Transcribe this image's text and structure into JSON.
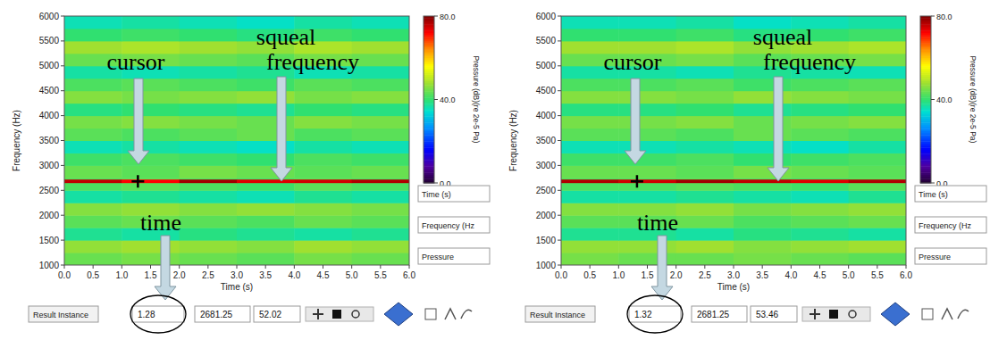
{
  "chart_data": [
    {
      "type": "heatmap",
      "xlabel": "Time (s)",
      "ylabel": "Frequency (Hz)",
      "xlim": [
        0,
        6
      ],
      "ylim": [
        1000,
        6000
      ],
      "xticks": [
        {
          "value": 0,
          "label": "0.0"
        },
        {
          "value": 0.5,
          "label": "0.5"
        },
        {
          "value": 1,
          "label": "1.0"
        },
        {
          "value": 1.5,
          "label": "1.5"
        },
        {
          "value": 2,
          "label": "2.0"
        },
        {
          "value": 2.5,
          "label": "2.5"
        },
        {
          "value": 3,
          "label": "3.0"
        },
        {
          "value": 3.5,
          "label": "3.5"
        },
        {
          "value": 4,
          "label": "4.0"
        },
        {
          "value": 4.5,
          "label": "4.5"
        },
        {
          "value": 5,
          "label": "5.0"
        },
        {
          "value": 5.5,
          "label": "5.5"
        },
        {
          "value": 6,
          "label": "6.0"
        }
      ],
      "yticks": [
        1000,
        1500,
        2000,
        2500,
        3000,
        3500,
        4000,
        4500,
        5000,
        5500,
        6000
      ],
      "x_edges": [
        0,
        1,
        2,
        3,
        4,
        5,
        6
      ],
      "y_edges": [
        1000,
        1250,
        1500,
        1750,
        2000,
        2250,
        2500,
        2750,
        3000,
        3250,
        3500,
        3750,
        4000,
        4250,
        4500,
        4750,
        5000,
        5250,
        5500,
        5750,
        6000
      ],
      "cells": [
        [
          44,
          45,
          44,
          43,
          45,
          44
        ],
        [
          47,
          48,
          47,
          46,
          48,
          47
        ],
        [
          38,
          37,
          39,
          38,
          37,
          38
        ],
        [
          43,
          44,
          43,
          42,
          44,
          43
        ],
        [
          46,
          47,
          46,
          47,
          46,
          45
        ],
        [
          37,
          38,
          37,
          36,
          38,
          37
        ],
        [
          42,
          43,
          42,
          41,
          43,
          42
        ],
        [
          44,
          43,
          45,
          44,
          43,
          44
        ],
        [
          41,
          42,
          41,
          40,
          42,
          41
        ],
        [
          36,
          37,
          36,
          35,
          37,
          36
        ],
        [
          43,
          42,
          43,
          44,
          42,
          43
        ],
        [
          45,
          46,
          45,
          44,
          46,
          45
        ],
        [
          39,
          40,
          39,
          38,
          40,
          39
        ],
        [
          46,
          45,
          46,
          47,
          45,
          46
        ],
        [
          42,
          43,
          42,
          41,
          43,
          42
        ],
        [
          37,
          36,
          37,
          38,
          36,
          37
        ],
        [
          44,
          45,
          44,
          43,
          45,
          44
        ],
        [
          48,
          49,
          48,
          47,
          49,
          48
        ],
        [
          40,
          41,
          40,
          39,
          41,
          40
        ],
        [
          36,
          37,
          36,
          35,
          37,
          36
        ]
      ],
      "squeal": {
        "frequency": 2681.25,
        "values": [
          76,
          72,
          78,
          74,
          75,
          77
        ]
      },
      "colorbar": {
        "label": "Pressure (dB)(re 2e-5 Pa)",
        "range": [
          0,
          80
        ],
        "ticks": [
          {
            "value": 80,
            "label": "80.0"
          },
          {
            "value": 40,
            "label": "40.0"
          },
          {
            "value": 0,
            "label": "0.0"
          }
        ]
      },
      "cursor": {
        "time": 1.28,
        "frequency": 2681.25,
        "pressure": 52.02
      }
    },
    {
      "type": "heatmap",
      "xlabel": "Time (s)",
      "ylabel": "Frequency (Hz)",
      "xlim": [
        0,
        6
      ],
      "ylim": [
        1000,
        6000
      ],
      "xticks": [
        {
          "value": 0,
          "label": "0.0"
        },
        {
          "value": 0.5,
          "label": "0.5"
        },
        {
          "value": 1,
          "label": "1.0"
        },
        {
          "value": 1.5,
          "label": "1.5"
        },
        {
          "value": 2,
          "label": "2.0"
        },
        {
          "value": 2.5,
          "label": "2.5"
        },
        {
          "value": 3,
          "label": "3.0"
        },
        {
          "value": 3.5,
          "label": "3.5"
        },
        {
          "value": 4,
          "label": "4.0"
        },
        {
          "value": 4.5,
          "label": "4.5"
        },
        {
          "value": 5,
          "label": "5.0"
        },
        {
          "value": 5.5,
          "label": "5.5"
        },
        {
          "value": 6,
          "label": "6.0"
        }
      ],
      "yticks": [
        1000,
        1500,
        2000,
        2500,
        3000,
        3500,
        4000,
        4500,
        5000,
        5500,
        6000
      ],
      "x_edges": [
        0,
        1,
        2,
        3,
        4,
        5,
        6
      ],
      "y_edges": [
        1000,
        1250,
        1500,
        1750,
        2000,
        2250,
        2500,
        2750,
        3000,
        3250,
        3500,
        3750,
        4000,
        4250,
        4500,
        4750,
        5000,
        5250,
        5500,
        5750,
        6000
      ],
      "cells": [
        [
          45,
          44,
          44,
          45,
          44,
          43
        ],
        [
          47,
          47,
          48,
          46,
          47,
          48
        ],
        [
          38,
          38,
          37,
          39,
          38,
          37
        ],
        [
          43,
          43,
          44,
          42,
          43,
          44
        ],
        [
          46,
          46,
          47,
          45,
          46,
          47
        ],
        [
          37,
          37,
          38,
          37,
          36,
          38
        ],
        [
          42,
          42,
          43,
          42,
          41,
          43
        ],
        [
          44,
          44,
          43,
          45,
          44,
          43
        ],
        [
          41,
          41,
          42,
          40,
          41,
          42
        ],
        [
          36,
          36,
          37,
          36,
          35,
          37
        ],
        [
          43,
          43,
          42,
          44,
          43,
          42
        ],
        [
          45,
          45,
          46,
          44,
          45,
          46
        ],
        [
          39,
          39,
          40,
          38,
          39,
          40
        ],
        [
          46,
          46,
          45,
          47,
          46,
          45
        ],
        [
          42,
          42,
          43,
          41,
          42,
          43
        ],
        [
          37,
          37,
          36,
          38,
          37,
          36
        ],
        [
          44,
          44,
          45,
          43,
          44,
          45
        ],
        [
          48,
          48,
          49,
          47,
          48,
          49
        ],
        [
          40,
          40,
          41,
          39,
          40,
          41
        ],
        [
          36,
          36,
          37,
          35,
          36,
          37
        ]
      ],
      "squeal": {
        "frequency": 2681.25,
        "values": [
          77,
          75,
          78,
          76,
          74,
          77
        ]
      },
      "colorbar": {
        "label": "Pressure (dB)(re 2e-5 Pa)",
        "range": [
          0,
          80
        ],
        "ticks": [
          {
            "value": 80,
            "label": "80.0"
          },
          {
            "value": 40,
            "label": "40.0"
          },
          {
            "value": 0,
            "label": "0.0"
          }
        ]
      },
      "cursor": {
        "time": 1.32,
        "frequency": 2681.25,
        "pressure": 53.46
      }
    }
  ],
  "panels": [
    {
      "annotations": {
        "cursor": "cursor",
        "squeal": "squeal frequency",
        "time": "time"
      },
      "readout_label": "Result Instance",
      "fields": [
        "Time (s)",
        "Frequency (Hz",
        "Pressure"
      ]
    },
    {
      "annotations": {
        "cursor": "cursor",
        "squeal": "squeal frequency",
        "time": "time"
      },
      "readout_label": "Result Instance",
      "fields": [
        "Time (s)",
        "Frequency (Hz",
        "Pressure"
      ]
    }
  ]
}
